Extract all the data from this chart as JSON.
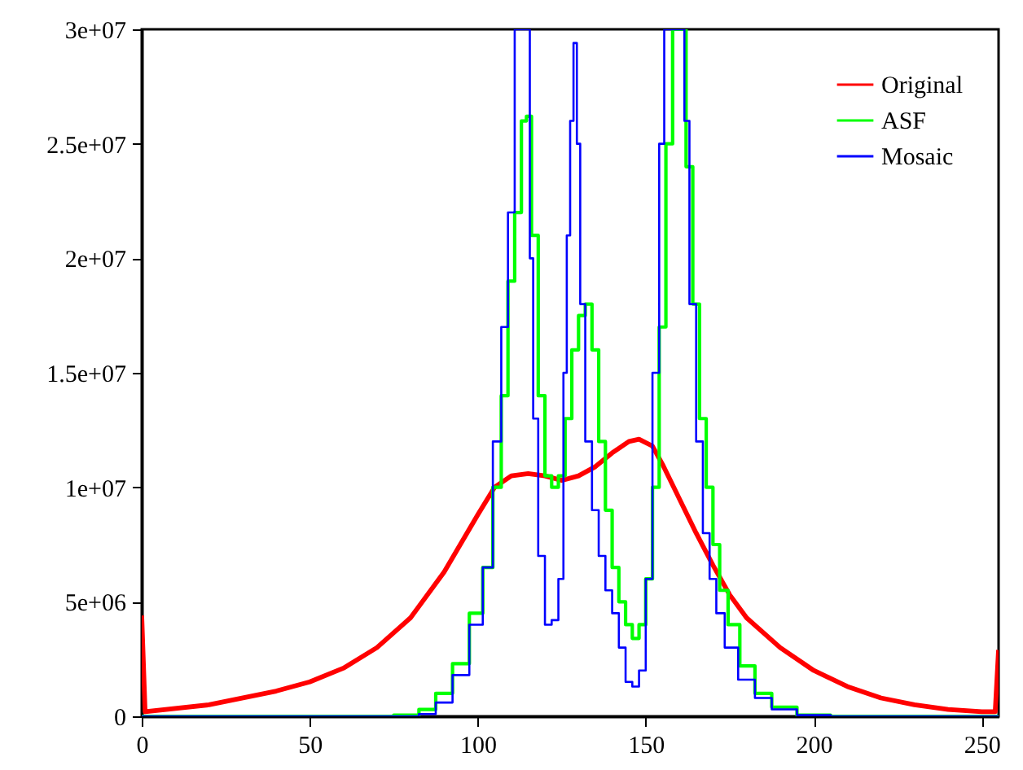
{
  "chart_data": {
    "type": "step",
    "xlim": [
      0,
      255
    ],
    "xticks": [
      0,
      50,
      100,
      150,
      200,
      250
    ],
    "ylim": [
      0,
      30000000
    ],
    "yticks": [
      {
        "value": 0,
        "label": "0"
      },
      {
        "value": 5000000,
        "label": "5e+06"
      },
      {
        "value": 10000000,
        "label": "1e+07"
      },
      {
        "value": 15000000,
        "label": "1.5e+07"
      },
      {
        "value": 20000000,
        "label": "2e+07"
      },
      {
        "value": 25000000,
        "label": "2.5e+07"
      },
      {
        "value": 30000000,
        "label": "3e+07"
      }
    ],
    "grid": false,
    "legend": "top right",
    "line_style": "solid",
    "marker": "none",
    "series": [
      {
        "name": "Original",
        "color": "#ff0000",
        "type": "line",
        "x": [
          0,
          1,
          20,
          40,
          50,
          60,
          70,
          80,
          90,
          100,
          105,
          110,
          115,
          120,
          125,
          130,
          135,
          140,
          145,
          148,
          152,
          155,
          160,
          165,
          170,
          175,
          180,
          190,
          200,
          210,
          220,
          230,
          240,
          250,
          254,
          255
        ],
        "values": [
          4400000,
          200000,
          500000,
          1100000,
          1500000,
          2100000,
          3000000,
          4300000,
          6300000,
          8800000,
          10000000,
          10500000,
          10600000,
          10500000,
          10300000,
          10500000,
          10900000,
          11500000,
          12000000,
          12100000,
          11800000,
          11000000,
          9500000,
          8000000,
          6600000,
          5300000,
          4300000,
          3000000,
          2000000,
          1300000,
          800000,
          500000,
          300000,
          200000,
          200000,
          2900000
        ]
      },
      {
        "name": "ASF",
        "color": "#00ff00",
        "x": [
          0,
          70,
          80,
          85,
          90,
          95,
          100,
          103,
          106,
          108,
          110,
          112,
          114,
          115,
          117,
          119,
          121,
          123,
          125,
          127,
          129,
          131,
          133,
          135,
          137,
          139,
          141,
          143,
          145,
          147,
          149,
          151,
          153,
          155,
          157,
          159,
          161,
          163,
          165,
          167,
          169,
          171,
          173,
          176,
          180,
          185,
          190,
          200,
          210,
          255
        ],
        "values": [
          0,
          0,
          50000,
          300000,
          1000000,
          2300000,
          4500000,
          6500000,
          10000000,
          14000000,
          19000000,
          22000000,
          26000000,
          26200000,
          21000000,
          14000000,
          10500000,
          10000000,
          10500000,
          13000000,
          16000000,
          17500000,
          18000000,
          16000000,
          12000000,
          9000000,
          6500000,
          5000000,
          4000000,
          3400000,
          4000000,
          6000000,
          10000000,
          17000000,
          25000000,
          30000000,
          30000000,
          24000000,
          18000000,
          13000000,
          10000000,
          7500000,
          5500000,
          4000000,
          2200000,
          1000000,
          400000,
          50000,
          0,
          0
        ]
      },
      {
        "name": "Mosaic",
        "color": "#0000ff",
        "x": [
          0,
          80,
          85,
          90,
          95,
          100,
          103,
          106,
          108,
          110,
          112,
          115,
          116,
          117,
          119,
          121,
          123,
          125,
          126,
          127,
          128,
          129,
          130,
          131,
          133,
          135,
          137,
          139,
          141,
          143,
          145,
          147,
          149,
          151,
          153,
          155,
          156,
          161,
          162,
          164,
          166,
          168,
          170,
          172,
          175,
          180,
          185,
          190,
          200,
          210,
          255
        ],
        "values": [
          0,
          0,
          100000,
          600000,
          1800000,
          4000000,
          6500000,
          12000000,
          17000000,
          22000000,
          30000000,
          30000000,
          20000000,
          13000000,
          7000000,
          4000000,
          4200000,
          6000000,
          15000000,
          21000000,
          26000000,
          29400000,
          25000000,
          18000000,
          12000000,
          9000000,
          7000000,
          5500000,
          4500000,
          3000000,
          1500000,
          1300000,
          2000000,
          6000000,
          15000000,
          25000000,
          30000000,
          30000000,
          26000000,
          18000000,
          12000000,
          8000000,
          6000000,
          4500000,
          3000000,
          1600000,
          800000,
          300000,
          50000,
          0,
          0
        ]
      }
    ]
  }
}
